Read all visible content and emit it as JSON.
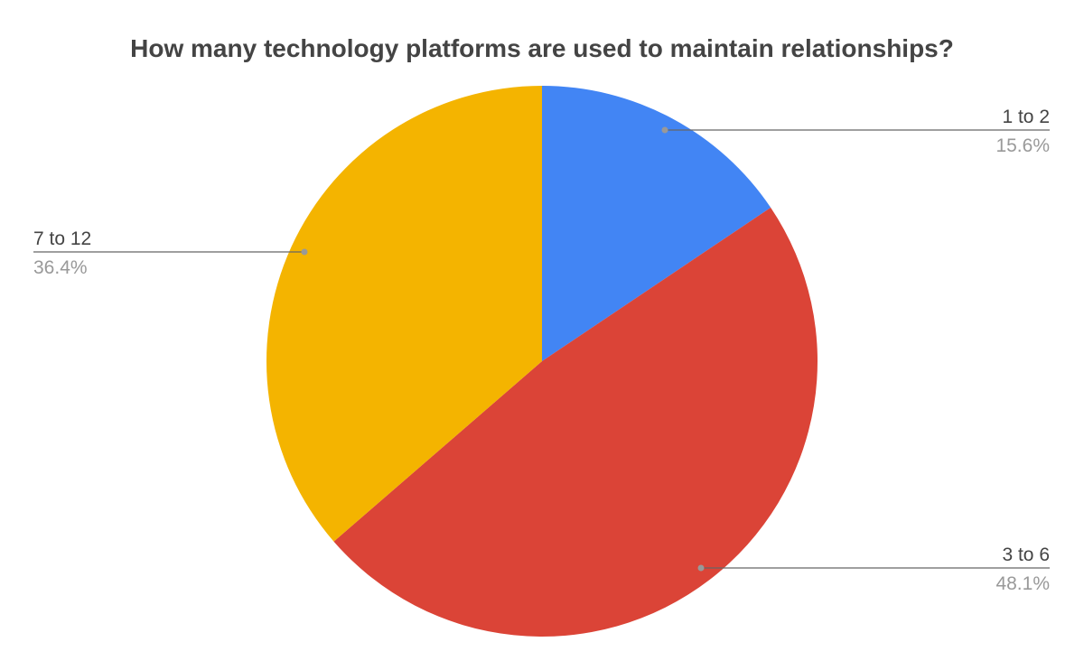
{
  "chart_data": {
    "type": "pie",
    "title": "How many technology platforms are used to maintain relationships?",
    "start_angle_deg": 0,
    "direction": "clockwise",
    "slices": [
      {
        "label": "1 to 2",
        "value": 15.6,
        "percent_label": "15.6%",
        "color": "#4285F4"
      },
      {
        "label": "3 to 6",
        "value": 48.1,
        "percent_label": "48.1%",
        "color": "#DB4437"
      },
      {
        "label": "7 to 12",
        "value": 36.4,
        "percent_label": "36.4%",
        "color": "#F4B400"
      }
    ],
    "labels_position": "outside with leader lines"
  }
}
